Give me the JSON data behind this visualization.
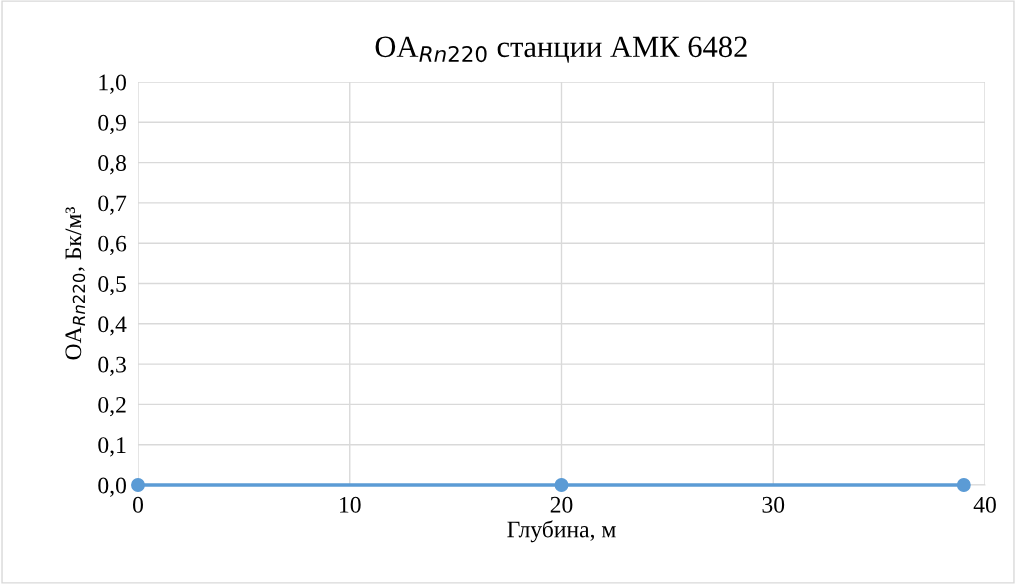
{
  "chart_data": {
    "type": "line",
    "title": "OA$_{Rn220}$ станции АМК 6482",
    "xlabel": "Глубина, м",
    "ylabel": "OA$_{Rn220}$, Бк/м³",
    "x": [
      0,
      20,
      39
    ],
    "series": [
      {
        "color": "#5b9bd5",
        "values": [
          0,
          0,
          0
        ]
      }
    ],
    "xlim": [
      0,
      40
    ],
    "xticks": [
      0,
      10,
      20,
      30,
      40
    ],
    "ylim": [
      0,
      1
    ],
    "yticks": [
      {
        "value": 0,
        "label": "0,0"
      },
      {
        "value": 0.1,
        "label": "0,1"
      },
      {
        "value": 0.2,
        "label": "0,2"
      },
      {
        "value": 0.3,
        "label": "0,3"
      },
      {
        "value": 0.4,
        "label": "0,4"
      },
      {
        "value": 0.5,
        "label": "0,5"
      },
      {
        "value": 0.6,
        "label": "0,6"
      },
      {
        "value": 0.7,
        "label": "0,7"
      },
      {
        "value": 0.8,
        "label": "0,8"
      },
      {
        "value": 0.9,
        "label": "0,9"
      },
      {
        "value": 1,
        "label": "1,0"
      }
    ],
    "grid": true,
    "marker": "circle",
    "line_style": "solid"
  }
}
